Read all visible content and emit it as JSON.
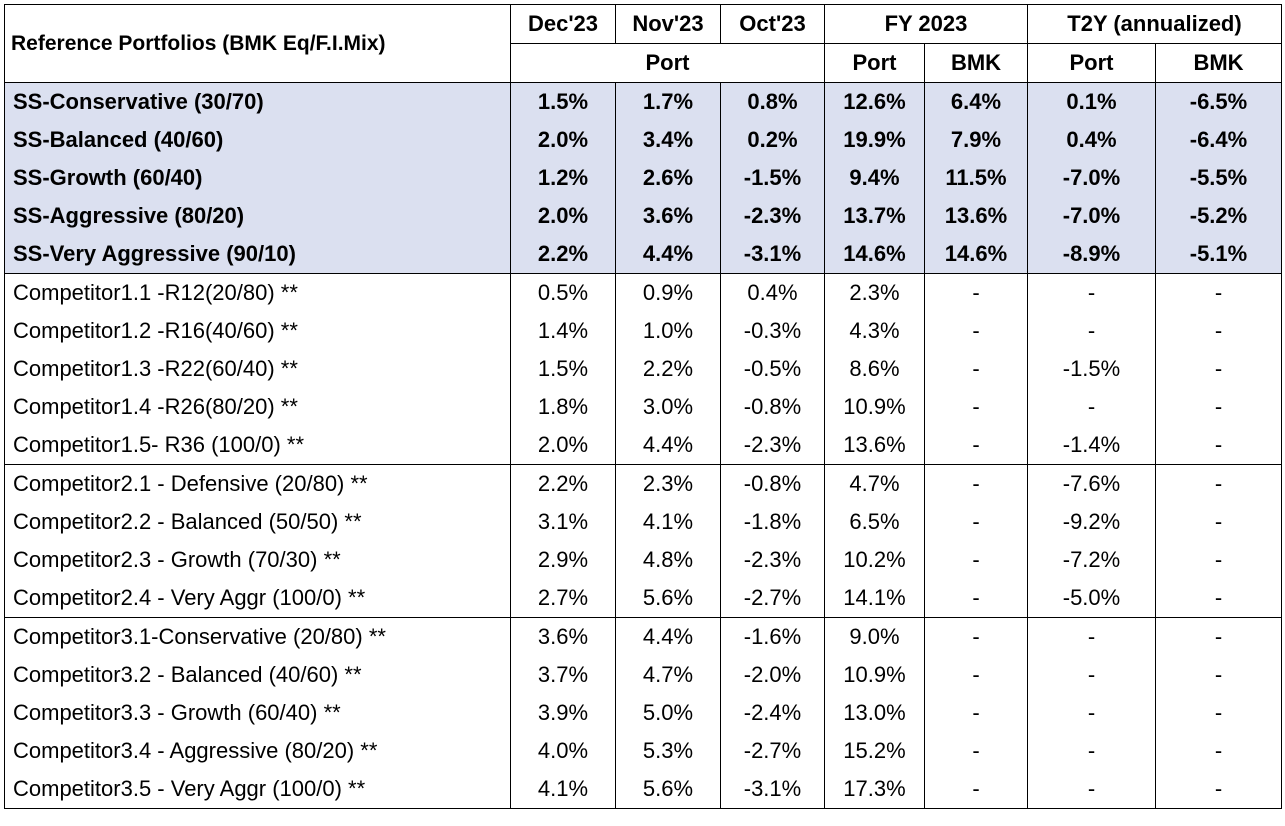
{
  "header": {
    "title": "Reference Portfolios (BMK Eq/F.I.Mix)",
    "months": [
      "Dec'23",
      "Nov'23",
      "Oct'23"
    ],
    "fy_label": "FY 2023",
    "t2y_label": "T2Y (annualized)",
    "port_label": "Port",
    "fy_port": "Port",
    "fy_bmk": "BMK",
    "t2y_port": "Port",
    "t2y_bmk": "BMK"
  },
  "groups": [
    {
      "type": "ss",
      "rows": [
        {
          "name": "SS-Conservative (30/70)",
          "dec": "1.5%",
          "nov": "1.7%",
          "oct": "0.8%",
          "fy_port": "12.6%",
          "fy_bmk": "6.4%",
          "t2y_port": "0.1%",
          "t2y_bmk": "-6.5%"
        },
        {
          "name": "SS-Balanced (40/60)",
          "dec": "2.0%",
          "nov": "3.4%",
          "oct": "0.2%",
          "fy_port": "19.9%",
          "fy_bmk": "7.9%",
          "t2y_port": "0.4%",
          "t2y_bmk": "-6.4%"
        },
        {
          "name": "SS-Growth (60/40)",
          "dec": "1.2%",
          "nov": "2.6%",
          "oct": "-1.5%",
          "fy_port": "9.4%",
          "fy_bmk": "11.5%",
          "t2y_port": "-7.0%",
          "t2y_bmk": "-5.5%"
        },
        {
          "name": "SS-Aggressive (80/20)",
          "dec": "2.0%",
          "nov": "3.6%",
          "oct": "-2.3%",
          "fy_port": "13.7%",
          "fy_bmk": "13.6%",
          "t2y_port": "-7.0%",
          "t2y_bmk": "-5.2%"
        },
        {
          "name": "SS-Very Aggressive (90/10)",
          "dec": "2.2%",
          "nov": "4.4%",
          "oct": "-3.1%",
          "fy_port": "14.6%",
          "fy_bmk": "14.6%",
          "t2y_port": "-8.9%",
          "t2y_bmk": "-5.1%"
        }
      ]
    },
    {
      "type": "comp",
      "rows": [
        {
          "name": "Competitor1.1 -R12(20/80) **",
          "dec": "0.5%",
          "nov": "0.9%",
          "oct": "0.4%",
          "fy_port": "2.3%",
          "fy_bmk": "-",
          "t2y_port": "-",
          "t2y_bmk": "-"
        },
        {
          "name": "Competitor1.2 -R16(40/60) **",
          "dec": "1.4%",
          "nov": "1.0%",
          "oct": "-0.3%",
          "fy_port": "4.3%",
          "fy_bmk": "-",
          "t2y_port": "-",
          "t2y_bmk": "-"
        },
        {
          "name": "Competitor1.3 -R22(60/40) **",
          "dec": "1.5%",
          "nov": "2.2%",
          "oct": "-0.5%",
          "fy_port": "8.6%",
          "fy_bmk": "-",
          "t2y_port": "-1.5%",
          "t2y_bmk": "-"
        },
        {
          "name": "Competitor1.4 -R26(80/20) **",
          "dec": "1.8%",
          "nov": "3.0%",
          "oct": "-0.8%",
          "fy_port": "10.9%",
          "fy_bmk": "-",
          "t2y_port": "-",
          "t2y_bmk": "-"
        },
        {
          "name": "Competitor1.5- R36 (100/0) **",
          "dec": "2.0%",
          "nov": "4.4%",
          "oct": "-2.3%",
          "fy_port": "13.6%",
          "fy_bmk": "-",
          "t2y_port": "-1.4%",
          "t2y_bmk": "-"
        }
      ]
    },
    {
      "type": "comp",
      "rows": [
        {
          "name": "Competitor2.1  - Defensive  (20/80) **",
          "dec": "2.2%",
          "nov": "2.3%",
          "oct": "-0.8%",
          "fy_port": "4.7%",
          "fy_bmk": "-",
          "t2y_port": "-7.6%",
          "t2y_bmk": "-"
        },
        {
          "name": "Competitor2.2  - Balanced (50/50) **",
          "dec": "3.1%",
          "nov": "4.1%",
          "oct": "-1.8%",
          "fy_port": "6.5%",
          "fy_bmk": "-",
          "t2y_port": "-9.2%",
          "t2y_bmk": "-"
        },
        {
          "name": "Competitor2.3  - Growth  (70/30) **",
          "dec": "2.9%",
          "nov": "4.8%",
          "oct": "-2.3%",
          "fy_port": "10.2%",
          "fy_bmk": "-",
          "t2y_port": "-7.2%",
          "t2y_bmk": "-"
        },
        {
          "name": "Competitor2.4  - Very Aggr  (100/0) **",
          "dec": "2.7%",
          "nov": "5.6%",
          "oct": "-2.7%",
          "fy_port": "14.1%",
          "fy_bmk": "-",
          "t2y_port": "-5.0%",
          "t2y_bmk": "-"
        }
      ]
    },
    {
      "type": "comp",
      "rows": [
        {
          "name": "Competitor3.1-Conservative (20/80) **",
          "dec": "3.6%",
          "nov": "4.4%",
          "oct": "-1.6%",
          "fy_port": "9.0%",
          "fy_bmk": "-",
          "t2y_port": "-",
          "t2y_bmk": "-"
        },
        {
          "name": "Competitor3.2 - Balanced  (40/60) **",
          "dec": "3.7%",
          "nov": "4.7%",
          "oct": "-2.0%",
          "fy_port": "10.9%",
          "fy_bmk": "-",
          "t2y_port": "-",
          "t2y_bmk": "-"
        },
        {
          "name": "Competitor3.3 - Growth  (60/40) **",
          "dec": "3.9%",
          "nov": "5.0%",
          "oct": "-2.4%",
          "fy_port": "13.0%",
          "fy_bmk": "-",
          "t2y_port": "-",
          "t2y_bmk": "-"
        },
        {
          "name": "Competitor3.4 - Aggressive  (80/20) **",
          "dec": "4.0%",
          "nov": "5.3%",
          "oct": "-2.7%",
          "fy_port": "15.2%",
          "fy_bmk": "-",
          "t2y_port": "-",
          "t2y_bmk": "-"
        },
        {
          "name": "Competitor3.5  - Very Aggr (100/0) **",
          "dec": "4.1%",
          "nov": "5.6%",
          "oct": "-3.1%",
          "fy_port": "17.3%",
          "fy_bmk": "-",
          "t2y_port": "-",
          "t2y_bmk": "-"
        }
      ]
    }
  ],
  "colors": {
    "ss_row_background": "#dbe0f0",
    "border": "#000000"
  }
}
